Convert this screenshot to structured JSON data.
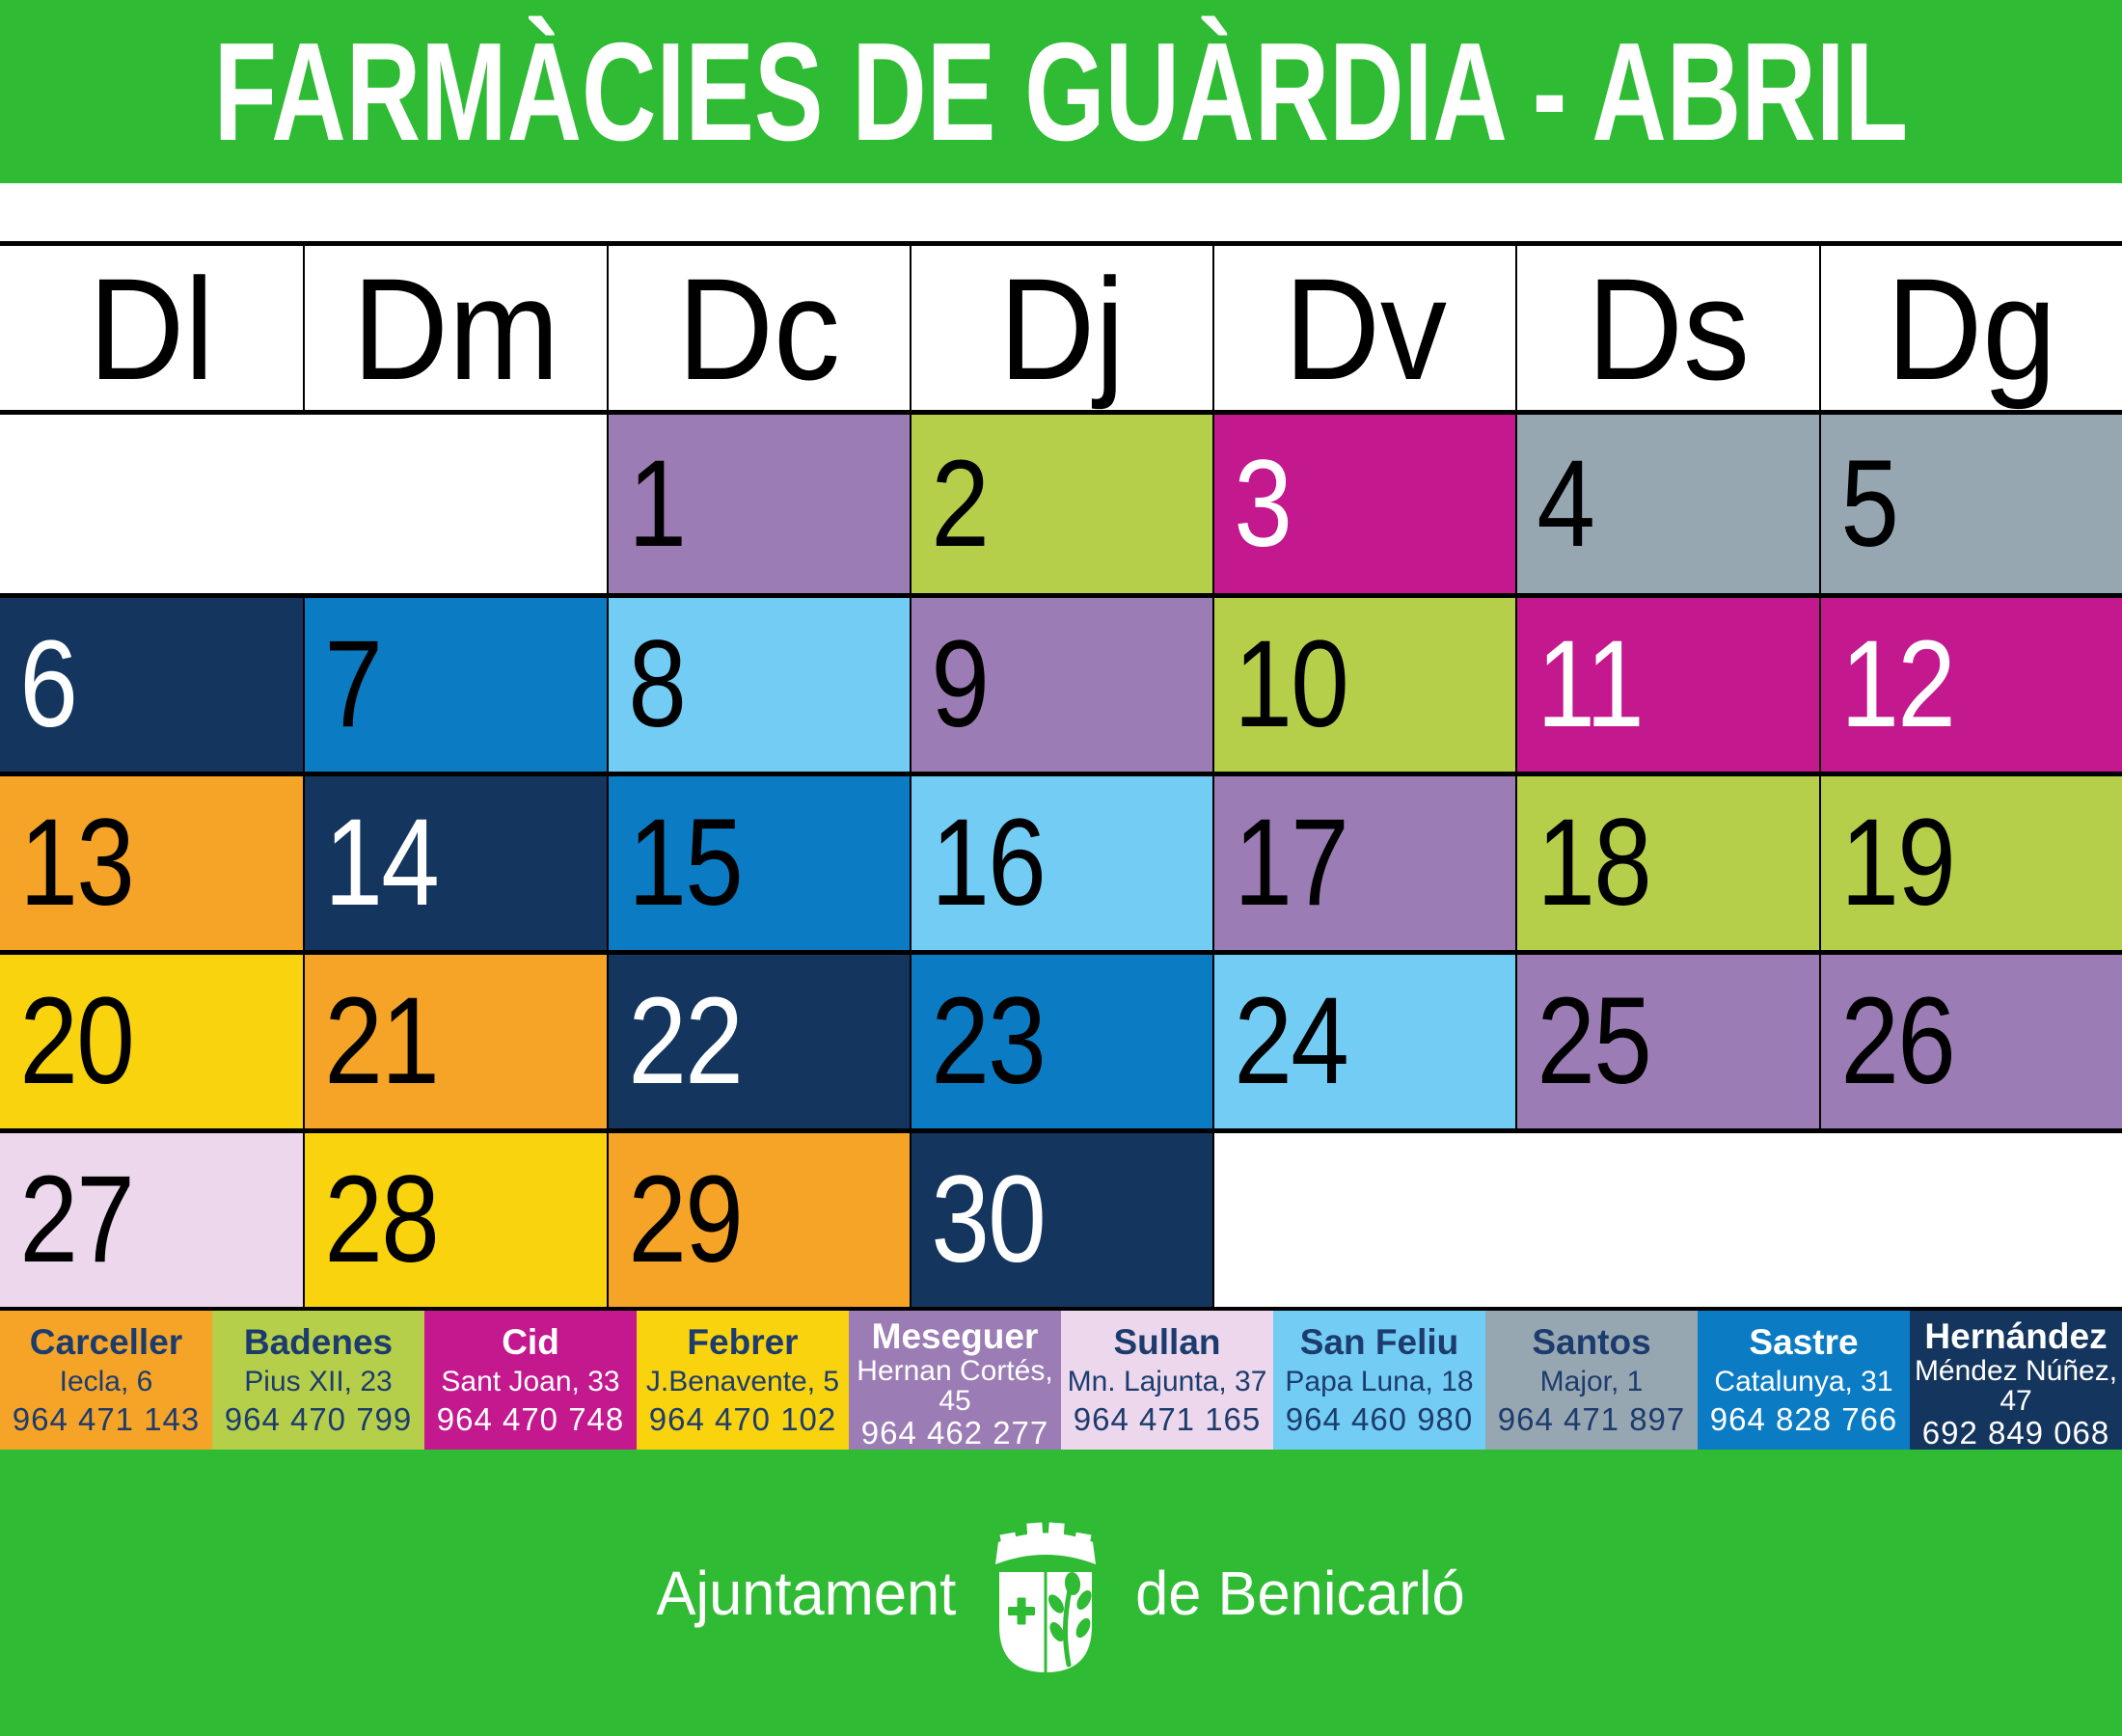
{
  "colors": {
    "green": "#2fbb34",
    "navy_text": "#1d3c6e",
    "black": "#000000",
    "white": "#ffffff"
  },
  "header": {
    "title": "FARMÀCIES DE GUÀRDIA - ABRIL"
  },
  "calendar": {
    "day_headers": [
      "Dl",
      "Dm",
      "Dc",
      "Dj",
      "Dv",
      "Ds",
      "Dg"
    ],
    "weeks": [
      {
        "cells": [
          {
            "empty": true,
            "span": 2
          },
          {
            "day": "1",
            "ph": "meseguer"
          },
          {
            "day": "2",
            "ph": "badenes"
          },
          {
            "day": "3",
            "ph": "cid"
          },
          {
            "day": "4",
            "ph": "santos"
          },
          {
            "day": "5",
            "ph": "santos"
          }
        ]
      },
      {
        "cells": [
          {
            "day": "6",
            "ph": "hernandez"
          },
          {
            "day": "7",
            "ph": "sastre"
          },
          {
            "day": "8",
            "ph": "sanfeliu"
          },
          {
            "day": "9",
            "ph": "meseguer"
          },
          {
            "day": "10",
            "ph": "badenes"
          },
          {
            "day": "11",
            "ph": "cid"
          },
          {
            "day": "12",
            "ph": "cid"
          }
        ]
      },
      {
        "cells": [
          {
            "day": "13",
            "ph": "carceller"
          },
          {
            "day": "14",
            "ph": "hernandez"
          },
          {
            "day": "15",
            "ph": "sastre"
          },
          {
            "day": "16",
            "ph": "sanfeliu"
          },
          {
            "day": "17",
            "ph": "meseguer"
          },
          {
            "day": "18",
            "ph": "badenes"
          },
          {
            "day": "19",
            "ph": "badenes"
          }
        ]
      },
      {
        "cells": [
          {
            "day": "20",
            "ph": "febrer"
          },
          {
            "day": "21",
            "ph": "carceller"
          },
          {
            "day": "22",
            "ph": "hernandez"
          },
          {
            "day": "23",
            "ph": "sastre"
          },
          {
            "day": "24",
            "ph": "sanfeliu"
          },
          {
            "day": "25",
            "ph": "meseguer"
          },
          {
            "day": "26",
            "ph": "meseguer"
          }
        ]
      },
      {
        "cells": [
          {
            "day": "27",
            "ph": "sullan"
          },
          {
            "day": "28",
            "ph": "febrer"
          },
          {
            "day": "29",
            "ph": "carceller"
          },
          {
            "day": "30",
            "ph": "hernandez"
          },
          {
            "empty": true,
            "span": 3
          }
        ]
      }
    ]
  },
  "pharmacies": [
    {
      "id": "carceller",
      "name": "Carceller",
      "address": "Iecla, 6",
      "phone": "964 471 143",
      "color": "#f5a427",
      "text": "navy",
      "number_color": "black"
    },
    {
      "id": "badenes",
      "name": "Badenes",
      "address": "Pius XII, 23",
      "phone": "964 470 799",
      "color": "#b5cf4a",
      "text": "navy",
      "number_color": "black"
    },
    {
      "id": "cid",
      "name": "Cid",
      "address": "Sant Joan, 33",
      "phone": "964 470 748",
      "color": "#c3188e",
      "text": "white",
      "number_color": "white"
    },
    {
      "id": "febrer",
      "name": "Febrer",
      "address": "J.Benavente, 5",
      "phone": "964 470 102",
      "color": "#f8d30e",
      "text": "navy",
      "number_color": "black"
    },
    {
      "id": "meseguer",
      "name": "Meseguer",
      "address": "Hernan Cortés, 45",
      "phone": "964 462 277",
      "color": "#9c7cb4",
      "text": "white",
      "number_color": "black"
    },
    {
      "id": "sullan",
      "name": "Sullan",
      "address": "Mn. Lajunta, 37",
      "phone": "964 471 165",
      "color": "#ecd7ec",
      "text": "navy",
      "number_color": "black"
    },
    {
      "id": "sanfeliu",
      "name": "San Feliu",
      "address": "Papa Luna, 18",
      "phone": "964 460 980",
      "color": "#72ccf3",
      "text": "navy",
      "number_color": "black"
    },
    {
      "id": "santos",
      "name": "Santos",
      "address": "Major, 1",
      "phone": "964 471 897",
      "color": "#97a7b1",
      "text": "navy",
      "number_color": "black"
    },
    {
      "id": "sastre",
      "name": "Sastre",
      "address": "Catalunya, 31",
      "phone": "964 828 766",
      "color": "#0b7cc4",
      "text": "white",
      "number_color": "black"
    },
    {
      "id": "hernandez",
      "name": "Hernández",
      "address": "Méndez Núñez, 47",
      "phone": "692 849 068",
      "color": "#14365e",
      "text": "white",
      "number_color": "white"
    }
  ],
  "footer": {
    "left": "Ajuntament",
    "right": "de Benicarló"
  }
}
